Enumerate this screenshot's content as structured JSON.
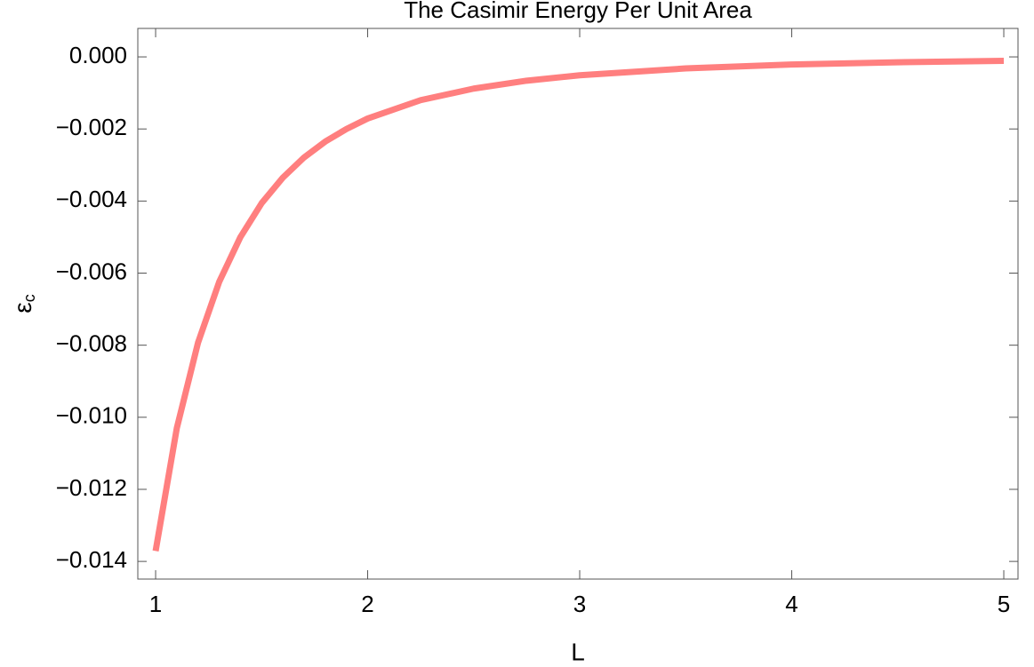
{
  "chart_data": {
    "type": "line",
    "title": "The Casimir Energy Per Unit Area",
    "xlabel": "L",
    "ylabel": "ε",
    "ylabel_subscript": "c",
    "x": [
      1,
      1.1,
      1.2,
      1.3,
      1.4,
      1.5,
      1.6,
      1.7,
      1.8,
      1.9,
      2,
      2.25,
      2.5,
      2.75,
      3,
      3.5,
      4,
      4.5,
      5
    ],
    "series": [
      {
        "color": "#ff7f7f",
        "values": [
          -0.01371,
          -0.0103,
          -0.00793,
          -0.00624,
          -0.005,
          -0.00406,
          -0.00335,
          -0.00279,
          -0.00235,
          -0.002,
          -0.00171,
          -0.0012,
          -0.00088,
          -0.00066,
          -0.00051,
          -0.00032,
          -0.00021,
          -0.00015,
          -0.00011
        ]
      }
    ],
    "xlim": [
      0.916,
      5.067
    ],
    "xticks": [
      1,
      2,
      3,
      4,
      5
    ],
    "ylim": [
      -0.01449,
      0.00079
    ],
    "yticks": [
      {
        "value": 0,
        "label": "0.000"
      },
      {
        "value": -0.002,
        "label": "−0.002"
      },
      {
        "value": -0.004,
        "label": "−0.004"
      },
      {
        "value": -0.006,
        "label": "−0.006"
      },
      {
        "value": -0.008,
        "label": "−0.008"
      },
      {
        "value": -0.01,
        "label": "−0.010"
      },
      {
        "value": -0.012,
        "label": "−0.012"
      },
      {
        "value": -0.014,
        "label": "−0.014"
      }
    ],
    "grid": false
  }
}
